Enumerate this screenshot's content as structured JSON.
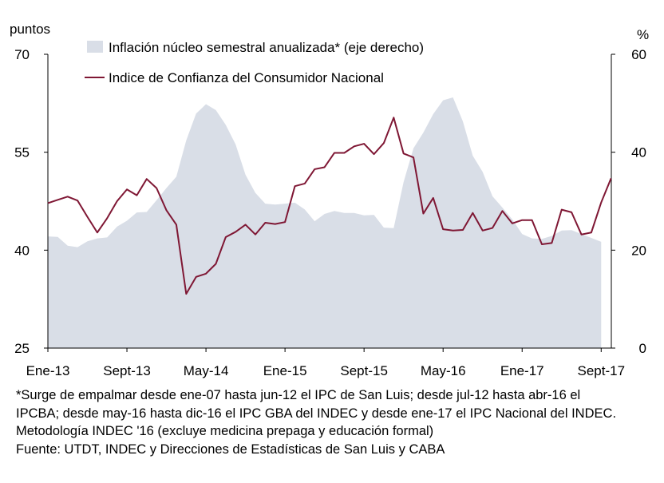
{
  "chart_data": {
    "type": "line",
    "y_unit_left": "puntos",
    "y_unit_right": "%",
    "ylim_left": [
      25,
      70
    ],
    "ylim_right": [
      0,
      60
    ],
    "yticks_left": [
      "70",
      "55",
      "40",
      "25"
    ],
    "yticks_right": [
      "60",
      "40",
      "20",
      "0"
    ],
    "x_tick_labels": [
      "Ene-13",
      "Sept-13",
      "May-14",
      "Ene-15",
      "Sept-15",
      "May-16",
      "Ene-17",
      "Sept-17"
    ],
    "x_start": "Ene-13",
    "x_end": "Sept-17",
    "series": [
      {
        "name": "Inflación núcleo semestral anualizada* (eje derecho)",
        "axis": "right",
        "kind": "area",
        "color": "#d9dee7",
        "values": [
          22.8,
          22.7,
          20.9,
          20.6,
          21.8,
          22.4,
          22.6,
          24.8,
          26.0,
          27.7,
          27.8,
          30.2,
          32.7,
          35.0,
          42.4,
          47.9,
          49.8,
          48.6,
          45.6,
          41.6,
          35.4,
          31.7,
          29.5,
          29.3,
          29.5,
          29.7,
          28.3,
          25.9,
          27.4,
          28.0,
          27.6,
          27.6,
          27.1,
          27.2,
          24.6,
          24.5,
          33.9,
          40.8,
          44.0,
          47.8,
          50.6,
          51.2,
          46.3,
          39.3,
          36.0,
          31.0,
          28.7,
          26.3,
          23.3,
          22.4,
          22.3,
          22.9,
          24.0,
          24.1,
          23.3,
          22.5,
          21.7
        ]
      },
      {
        "name": "Indice de Confianza del Consumidor Nacional",
        "axis": "left",
        "kind": "line",
        "color": "#7f1734",
        "values": [
          47.2,
          47.7,
          48.2,
          47.6,
          45.1,
          42.7,
          44.9,
          47.5,
          49.3,
          48.4,
          50.9,
          49.5,
          46.1,
          43.9,
          33.3,
          35.9,
          36.4,
          37.9,
          42.0,
          42.8,
          43.9,
          42.4,
          44.2,
          44.0,
          44.3,
          49.8,
          50.2,
          52.4,
          52.7,
          54.9,
          54.9,
          55.9,
          56.3,
          54.7,
          56.4,
          60.3,
          54.8,
          54.2,
          45.6,
          48.0,
          43.2,
          43.0,
          43.1,
          45.7,
          43.0,
          43.4,
          46.0,
          44.1,
          44.6,
          44.6,
          40.9,
          41.1,
          46.2,
          45.8,
          42.4,
          42.7,
          47.3,
          51.0
        ]
      }
    ]
  },
  "notes": {
    "line1": "*Surge de empalmar desde ene-07 hasta jun-12 el IPC de San Luis; desde jul-12 hasta abr-16 el",
    "line2": "IPCBA; desde may-16 hasta dic-16 el IPC GBA del INDEC y desde ene-17 el IPC Nacional del INDEC.",
    "line3": "Metodología INDEC '16 (excluye medicina prepaga y educación formal)",
    "line4": "Fuente: UTDT, INDEC y Direcciones de Estadísticas de San Luis y CABA"
  }
}
